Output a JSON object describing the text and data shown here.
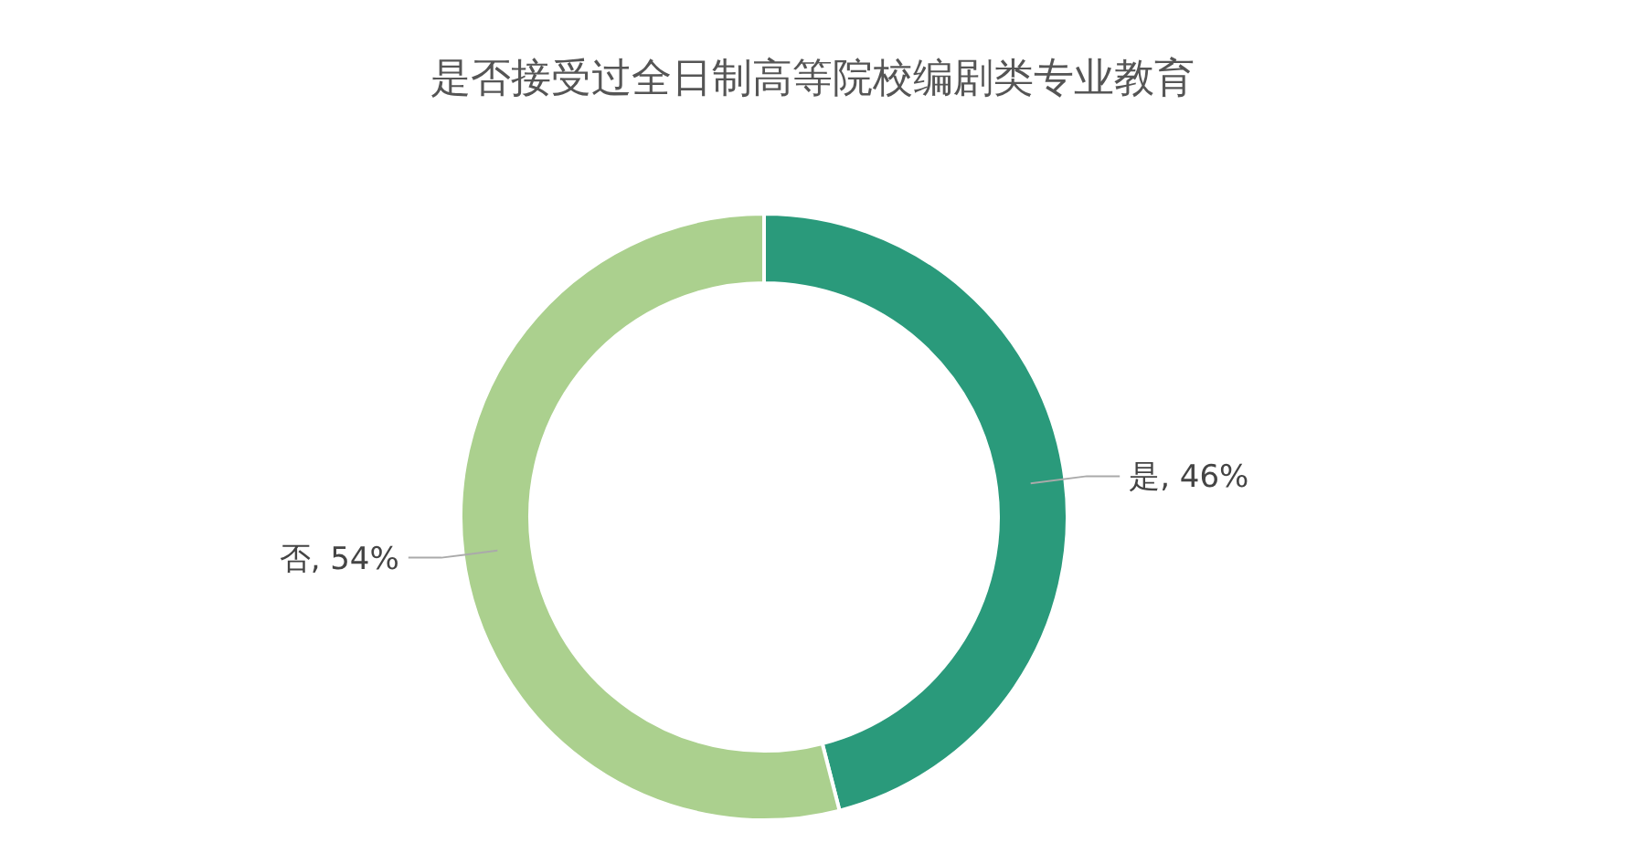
{
  "chart_data": {
    "type": "donut",
    "title": "是否接受过全日制高等院校编剧类专业教育",
    "categories": [
      "是",
      "否"
    ],
    "values": [
      46,
      54
    ],
    "colors": [
      "#2a9a7b",
      "#abd08e"
    ],
    "value_labels": [
      ", 46%",
      ", 54%"
    ]
  }
}
